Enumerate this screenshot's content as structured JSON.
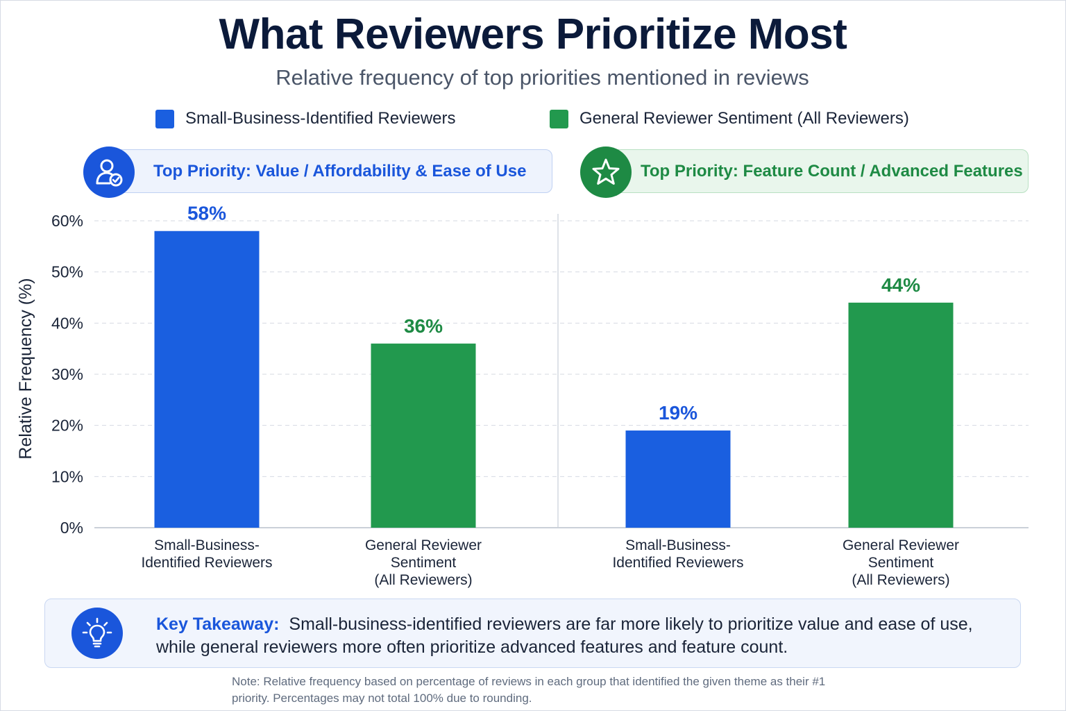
{
  "title": "What Reviewers Prioritize Most",
  "subtitle": "Relative frequency of top priorities mentioned in reviews",
  "legend": [
    {
      "label": "Small-Business-Identified Reviewers",
      "color": "#1a5fe0"
    },
    {
      "label": "General Reviewer Sentiment (All Reviewers)",
      "color": "#22994e"
    }
  ],
  "panels": [
    {
      "heading": "Top Priority: Value / Affordability & Ease of Use",
      "icon": "user-check-icon"
    },
    {
      "heading": "Top Priority: Feature Count / Advanced Features",
      "icon": "star-icon"
    }
  ],
  "chart_data": {
    "type": "bar",
    "ylabel": "Relative Frequency (%)",
    "ylim": [
      0,
      60
    ],
    "yticks": [
      0,
      10,
      20,
      30,
      40,
      50,
      60
    ],
    "ytick_labels": [
      "0%",
      "10%",
      "20%",
      "30%",
      "40%",
      "50%",
      "60%"
    ],
    "grid": true,
    "panels": [
      {
        "categories": [
          "Small-Business-Identified Reviewers",
          "General Reviewer Sentiment (All Reviewers)"
        ],
        "category_lines": [
          [
            "Small-Business-",
            "Identified Reviewers"
          ],
          [
            "General Reviewer",
            "Sentiment",
            "(All Reviewers)"
          ]
        ],
        "values": [
          58,
          36
        ],
        "value_labels": [
          "58%",
          "36%"
        ],
        "colors": [
          "#1a5fe0",
          "#22994e"
        ]
      },
      {
        "categories": [
          "Small-Business-Identified Reviewers",
          "General Reviewer Sentiment (All Reviewers)"
        ],
        "category_lines": [
          [
            "Small-Business-",
            "Identified Reviewers"
          ],
          [
            "General Reviewer",
            "Sentiment",
            "(All Reviewers)"
          ]
        ],
        "values": [
          19,
          44
        ],
        "value_labels": [
          "19%",
          "44%"
        ],
        "colors": [
          "#1a5fe0",
          "#22994e"
        ]
      }
    ],
    "label_colors": [
      "#1a56db",
      "#1e8a44"
    ]
  },
  "takeaway": {
    "label": "Key Takeaway:",
    "text": "Small-business-identified reviewers are far more likely to prioritize value and ease of use, while general reviewers more often prioritize advanced features and feature count.",
    "icon": "lightbulb-icon"
  },
  "note": "Note: Relative frequency based on percentage of reviews in each group that identified the given theme as their #1 priority. Percentages may not total 100% due to rounding."
}
